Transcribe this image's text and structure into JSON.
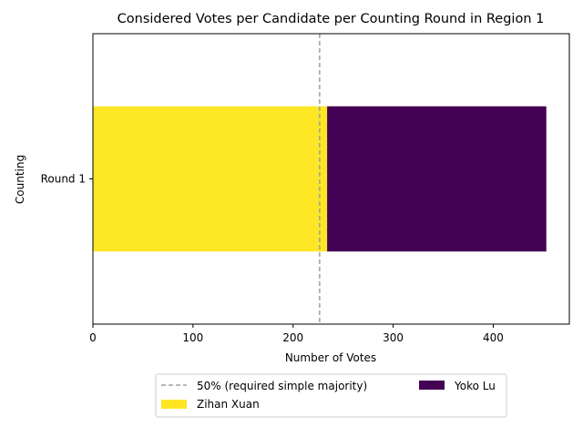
{
  "chart_data": {
    "type": "bar",
    "orientation": "horizontal",
    "stacked": true,
    "title": "Considered Votes per Candidate per Counting Round in Region 1",
    "xlabel": "Number of Votes",
    "ylabel": "Counting",
    "categories": [
      "Round 1"
    ],
    "series": [
      {
        "name": "Zihan Xuan",
        "values": [
          234
        ],
        "color": "#fde725"
      },
      {
        "name": "Yoko Lu",
        "values": [
          219
        ],
        "color": "#440154"
      }
    ],
    "threshold": {
      "label": "50% (required simple majority)",
      "value": 226.5,
      "color": "#a0a0a0",
      "style": "dashed"
    },
    "xlim": [
      0,
      476
    ],
    "xticks": [
      0,
      100,
      200,
      300,
      400
    ],
    "grid": false,
    "legend": {
      "placement": "bottom-center",
      "columns": 2
    }
  }
}
